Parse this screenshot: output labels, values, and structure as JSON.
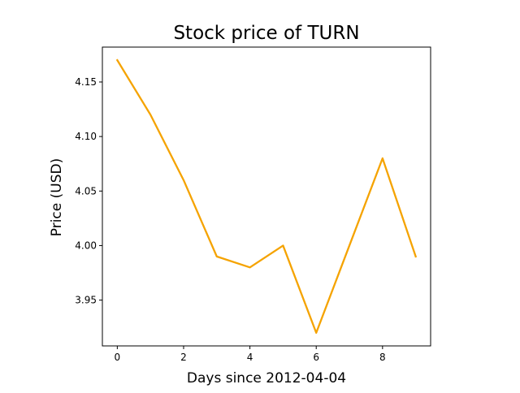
{
  "chart_data": {
    "type": "line",
    "title": "Stock price of TURN",
    "xlabel": "Days since 2012-04-04",
    "ylabel": "Price (USD)",
    "series": [
      {
        "color": "#f5a300",
        "x": [
          0,
          1,
          2,
          3,
          4,
          5,
          6,
          7,
          8,
          9
        ],
        "values": [
          4.17,
          4.12,
          4.06,
          3.99,
          3.98,
          4.0,
          3.92,
          4.0,
          4.08,
          3.99
        ]
      }
    ],
    "xlim": [
      -0.45,
      9.45
    ],
    "ylim": [
      3.908,
      4.182
    ],
    "xticks": [
      0,
      2,
      4,
      6,
      8
    ],
    "xtick_labels": [
      "0",
      "2",
      "4",
      "6",
      "8"
    ],
    "yticks": [
      3.95,
      4.0,
      4.05,
      4.1,
      4.15
    ],
    "ytick_labels": [
      "3.95",
      "4.00",
      "4.05",
      "4.10",
      "4.15"
    ],
    "grid": false,
    "legend": "none"
  }
}
